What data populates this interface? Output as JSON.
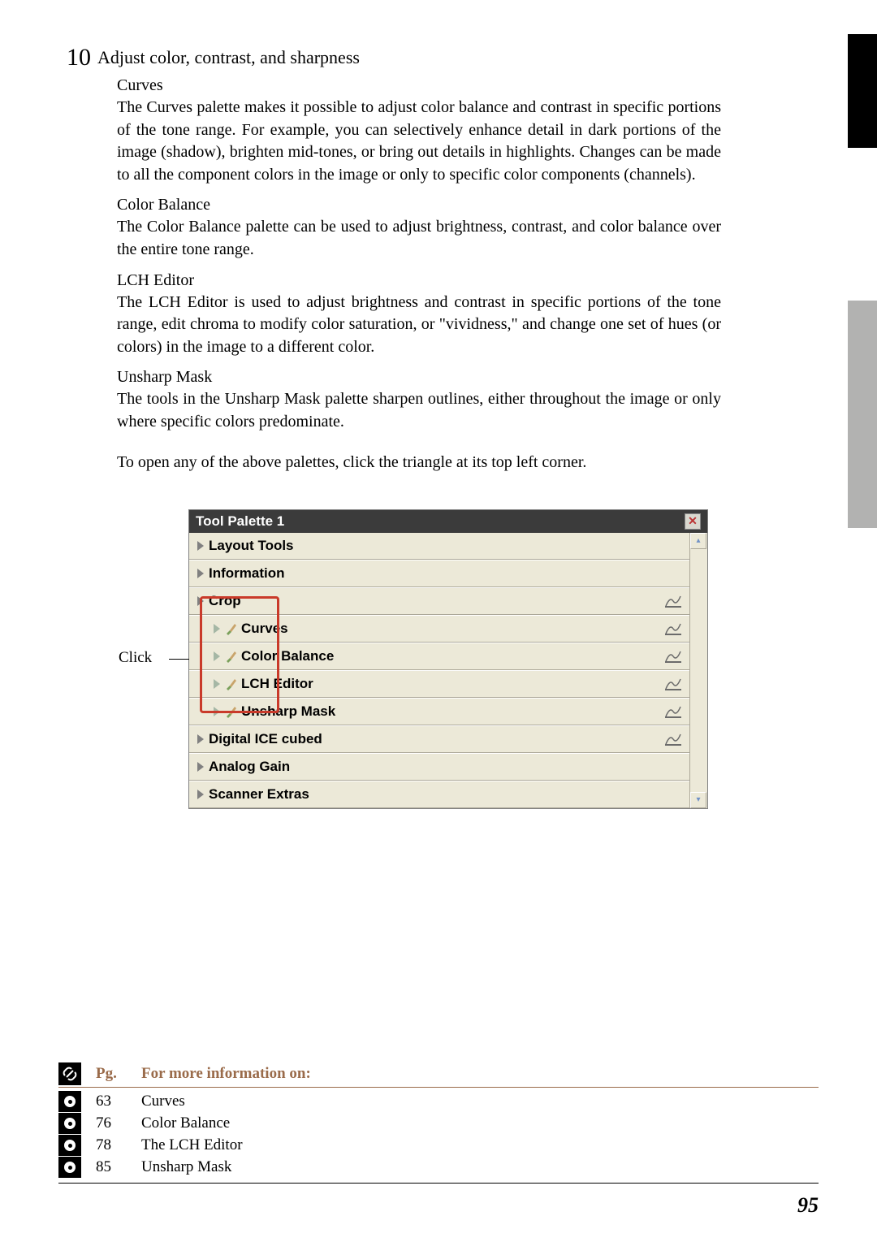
{
  "page_number": "95",
  "step_number": "10",
  "step_title": "Adjust color, contrast, and sharpness",
  "sections": [
    {
      "heading": "Curves",
      "body": "The Curves palette makes it possible to adjust color balance and contrast in specific portions of the tone range.  For example, you can selectively enhance detail in dark portions of the image (shadow), brighten mid-tones, or bring out details in highlights.  Changes can be made to all the component colors in the image or only to specific color components (channels)."
    },
    {
      "heading": "Color Balance",
      "body": "The Color Balance palette can be used to adjust brightness, contrast, and color balance over the entire tone range."
    },
    {
      "heading": "LCH Editor",
      "body": "The LCH Editor is used to adjust brightness and contrast in specific portions of the tone range, edit chroma to modify color saturation, or \"vividness,\" and change one set of hues (or colors) in the image to a different color."
    },
    {
      "heading": "Unsharp Mask",
      "body": "The tools in the Unsharp Mask palette sharpen outlines, either throughout the image or only where specific colors predominate."
    }
  ],
  "open_line": "To open any of the above palettes, click the triangle at its top left corner.",
  "click_label": "Click",
  "palette": {
    "title": "Tool Palette 1",
    "rows": [
      {
        "label": "Layout Tools",
        "indent": false,
        "brush": false,
        "icon": false
      },
      {
        "label": "Information",
        "indent": false,
        "brush": false,
        "icon": false
      },
      {
        "label": "Crop",
        "indent": false,
        "brush": false,
        "icon": true
      },
      {
        "label": "Curves",
        "indent": true,
        "brush": true,
        "icon": true
      },
      {
        "label": "Color Balance",
        "indent": true,
        "brush": true,
        "icon": true
      },
      {
        "label": "LCH Editor",
        "indent": true,
        "brush": true,
        "icon": true
      },
      {
        "label": "Unsharp Mask",
        "indent": true,
        "brush": true,
        "icon": true
      },
      {
        "label": "Digital ICE cubed",
        "indent": false,
        "brush": false,
        "icon": true
      },
      {
        "label": "Analog Gain",
        "indent": false,
        "brush": false,
        "icon": false
      },
      {
        "label": "Scanner Extras",
        "indent": false,
        "brush": false,
        "icon": false
      }
    ]
  },
  "ref": {
    "pg_head": "Pg.",
    "more_head": "For more information on:",
    "rows": [
      {
        "pg": "63",
        "txt": "Curves"
      },
      {
        "pg": "76",
        "txt": "Color Balance"
      },
      {
        "pg": "78",
        "txt": "The LCH Editor"
      },
      {
        "pg": "85",
        "txt": "Unsharp Mask"
      }
    ]
  },
  "colors": {
    "accent": "#9a6b4a",
    "highlight": "#c93a2a",
    "panel_bg": "#ece9d8",
    "title_bg": "#3b3b3b"
  }
}
